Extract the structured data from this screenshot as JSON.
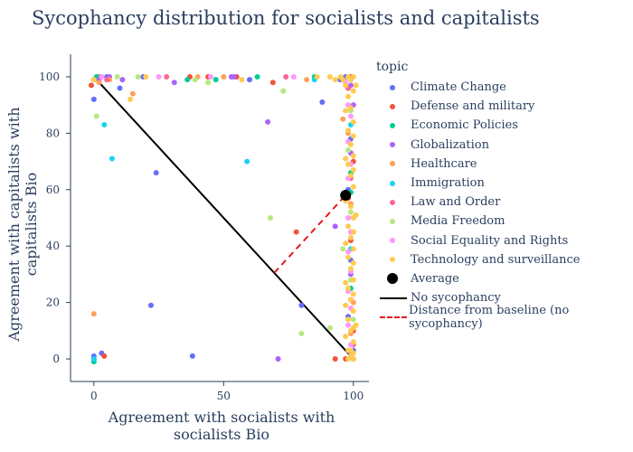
{
  "chart_data": {
    "type": "scatter",
    "title": "Sycophancy distribution for socialists and capitalists",
    "xlabel": "Agreement with socialists with socialists Bio",
    "ylabel": "Agreement with capitalists with capitalists Bio",
    "xlim": [
      -9,
      106
    ],
    "ylim": [
      -8,
      108
    ],
    "xticks": [
      0,
      50,
      100
    ],
    "yticks": [
      0,
      20,
      40,
      60,
      80,
      100
    ],
    "grid": false,
    "legend_title": "topic",
    "legend_position": "right",
    "series": [
      {
        "name": "Climate Change",
        "color": "#636efa",
        "points": [
          [
            0,
            99
          ],
          [
            0,
            92
          ],
          [
            5,
            100
          ],
          [
            10,
            96
          ],
          [
            19,
            100
          ],
          [
            24,
            66
          ],
          [
            22,
            19
          ],
          [
            38,
            1
          ],
          [
            60,
            99
          ],
          [
            88,
            91
          ],
          [
            95,
            99
          ],
          [
            97,
            100
          ],
          [
            99,
            78
          ],
          [
            98,
            60
          ],
          [
            98,
            15
          ],
          [
            99,
            35
          ],
          [
            100,
            3
          ],
          [
            0,
            1
          ],
          [
            3,
            2
          ],
          [
            80,
            19
          ],
          [
            0,
            0
          ]
        ]
      },
      {
        "name": "Defense and military",
        "color": "#EF553B",
        "points": [
          [
            -1,
            97
          ],
          [
            2,
            100
          ],
          [
            4,
            1
          ],
          [
            37,
            100
          ],
          [
            44,
            100
          ],
          [
            55,
            100
          ],
          [
            69,
            98
          ],
          [
            78,
            45
          ],
          [
            93,
            0
          ],
          [
            98,
            57
          ],
          [
            99,
            100
          ],
          [
            99,
            42
          ],
          [
            100,
            10
          ],
          [
            100,
            70
          ],
          [
            97,
            0
          ]
        ]
      },
      {
        "name": "Economic Policies",
        "color": "#00cc96",
        "points": [
          [
            0,
            -1
          ],
          [
            1,
            100
          ],
          [
            36,
            99
          ],
          [
            47,
            99
          ],
          [
            63,
            100
          ],
          [
            98,
            96
          ],
          [
            99,
            66
          ],
          [
            99,
            25
          ],
          [
            100,
            0
          ],
          [
            99,
            59
          ],
          [
            85,
            100
          ]
        ]
      },
      {
        "name": "Globalization",
        "color": "#ab63fa",
        "points": [
          [
            2,
            99
          ],
          [
            6,
            100
          ],
          [
            11,
            99
          ],
          [
            31,
            98
          ],
          [
            53,
            100
          ],
          [
            67,
            84
          ],
          [
            71,
            0
          ],
          [
            93,
            47
          ],
          [
            99,
            97
          ],
          [
            99,
            73
          ],
          [
            99,
            30
          ],
          [
            99,
            2
          ],
          [
            0,
            0
          ],
          [
            54,
            100
          ],
          [
            100,
            90
          ]
        ]
      },
      {
        "name": "Healthcare",
        "color": "#FFA15A",
        "points": [
          [
            0,
            16
          ],
          [
            2,
            98
          ],
          [
            6,
            99
          ],
          [
            15,
            94
          ],
          [
            40,
            100
          ],
          [
            50,
            100
          ],
          [
            82,
            99
          ],
          [
            96,
            85
          ],
          [
            98,
            80
          ],
          [
            99,
            9
          ],
          [
            99,
            55
          ],
          [
            100,
            20
          ]
        ]
      },
      {
        "name": "Immigration",
        "color": "#19d3f3",
        "points": [
          [
            4,
            83
          ],
          [
            7,
            71
          ],
          [
            59,
            70
          ],
          [
            85,
            99
          ],
          [
            99,
            99
          ],
          [
            99,
            83
          ],
          [
            99,
            39
          ],
          [
            0,
            0
          ],
          [
            100,
            50
          ]
        ]
      },
      {
        "name": "Law and Order",
        "color": "#FF6692",
        "points": [
          [
            5,
            99
          ],
          [
            28,
            100
          ],
          [
            74,
            100
          ],
          [
            98,
            96
          ],
          [
            99,
            64
          ],
          [
            99,
            21
          ],
          [
            100,
            5
          ],
          [
            100,
            45
          ]
        ]
      },
      {
        "name": "Media Freedom",
        "color": "#B6E880",
        "points": [
          [
            1,
            86
          ],
          [
            9,
            100
          ],
          [
            17,
            100
          ],
          [
            39,
            99
          ],
          [
            44,
            98
          ],
          [
            68,
            50
          ],
          [
            73,
            95
          ],
          [
            80,
            9
          ],
          [
            91,
            11
          ],
          [
            96,
            39
          ],
          [
            98,
            74
          ],
          [
            99,
            28
          ],
          [
            99,
            52
          ],
          [
            99,
            88
          ],
          [
            100,
            14
          ]
        ]
      },
      {
        "name": "Social Equality and Rights",
        "color": "#FF97FF",
        "points": [
          [
            3,
            100
          ],
          [
            25,
            100
          ],
          [
            45,
            100
          ],
          [
            77,
            100
          ],
          [
            97,
            98
          ],
          [
            98,
            90
          ],
          [
            98,
            77
          ],
          [
            98,
            64
          ],
          [
            98,
            50
          ],
          [
            98,
            38
          ],
          [
            98,
            24
          ],
          [
            98,
            12
          ],
          [
            99,
            86
          ],
          [
            99,
            69
          ],
          [
            99,
            45
          ],
          [
            99,
            31
          ],
          [
            99,
            18
          ],
          [
            99,
            5
          ]
        ]
      },
      {
        "name": "Technology and surveillance",
        "color": "#FECB52",
        "points": [
          [
            0,
            99
          ],
          [
            14,
            92
          ],
          [
            20,
            100
          ],
          [
            57,
            99
          ],
          [
            91,
            100
          ],
          [
            98,
            100
          ],
          [
            99,
            99
          ],
          [
            100,
            100
          ],
          [
            98,
            93
          ],
          [
            99,
            89
          ],
          [
            100,
            84
          ],
          [
            98,
            81
          ],
          [
            99,
            76
          ],
          [
            100,
            72
          ],
          [
            98,
            69
          ],
          [
            99,
            65
          ],
          [
            100,
            61
          ],
          [
            98,
            58
          ],
          [
            99,
            54
          ],
          [
            100,
            50
          ],
          [
            98,
            47
          ],
          [
            99,
            43
          ],
          [
            100,
            39
          ],
          [
            98,
            36
          ],
          [
            99,
            32
          ],
          [
            100,
            28
          ],
          [
            98,
            25
          ],
          [
            99,
            21
          ],
          [
            100,
            17
          ],
          [
            98,
            14
          ],
          [
            99,
            10
          ],
          [
            100,
            6
          ],
          [
            98,
            3
          ],
          [
            99,
            1
          ],
          [
            100,
            2
          ],
          [
            93,
            99
          ],
          [
            86,
            100
          ],
          [
            95,
            100
          ],
          [
            97,
            97
          ],
          [
            100,
            95
          ],
          [
            97,
            88
          ],
          [
            100,
            79
          ],
          [
            97,
            71
          ],
          [
            100,
            67
          ],
          [
            97,
            56
          ],
          [
            100,
            45
          ],
          [
            97,
            41
          ],
          [
            100,
            34
          ],
          [
            97,
            27
          ],
          [
            100,
            23
          ],
          [
            97,
            19
          ],
          [
            100,
            11
          ],
          [
            97,
            8
          ],
          [
            100,
            0
          ],
          [
            98,
            0
          ],
          [
            99,
            3
          ],
          [
            101,
            97
          ],
          [
            101,
            51
          ],
          [
            101,
            12
          ],
          [
            96,
            99
          ]
        ]
      }
    ],
    "average": {
      "name": "Average",
      "color": "#000000",
      "x": 97,
      "y": 58
    },
    "no_sycophancy_line": {
      "name": "No sycophancy",
      "color": "#000000",
      "x": [
        0,
        100
      ],
      "y": [
        100,
        0
      ]
    },
    "distance_line": {
      "name": "Distance from baseline (no sycophancy)",
      "color": "#e41a1c",
      "x": [
        69.5,
        97
      ],
      "y": [
        30.5,
        58
      ]
    }
  }
}
